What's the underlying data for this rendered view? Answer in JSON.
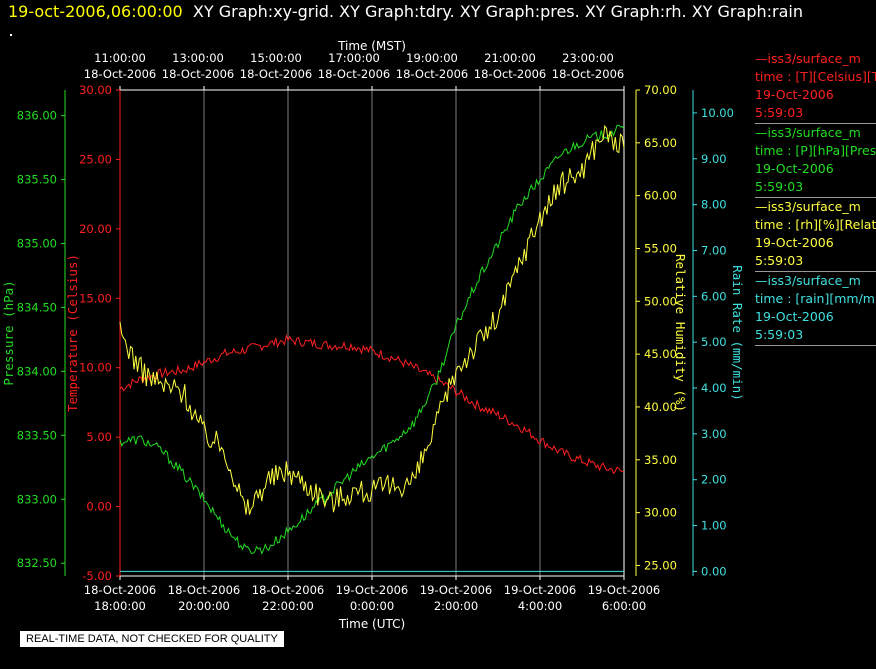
{
  "header": {
    "date": "19-oct-2006,06:00:00",
    "titles": "XY Graph:xy-grid.  XY Graph:tdry.  XY Graph:pres.  XY Graph:rh.  XY Graph:rain"
  },
  "quality_note": "REAL-TIME DATA, NOT CHECKED FOR QUALITY",
  "legend": [
    {
      "line1": "—iss3/surface_m",
      "line2": "time : [T][Celsius][T",
      "line3": "19-Oct-2006",
      "line4": "5:59:03",
      "color": "#ff2020"
    },
    {
      "line1": "—iss3/surface_m",
      "line2": "time : [P][hPa][Pres",
      "line3": "19-Oct-2006",
      "line4": "5:59:03",
      "color": "#22dd22"
    },
    {
      "line1": "—iss3/surface_m",
      "line2": "time : [rh][%][Relativ",
      "line3": "19-Oct-2006",
      "line4": "5:59:03",
      "color": "#ffff40"
    },
    {
      "line1": "—iss3/surface_m",
      "line2": "time : [rain][mm/min",
      "line3": "19-Oct-2006",
      "line4": "5:59:03",
      "color": "#40e0e0"
    }
  ],
  "chart_data": {
    "type": "line",
    "top_axis_label": "Time (MST)",
    "bottom_axis_label": "Time (UTC)",
    "x_range_utc": [
      "18-Oct-2006 18:00:00",
      "19-Oct-2006 06:00:00"
    ],
    "top_ticks": [
      {
        "time": "11:00:00",
        "date": "18-Oct-2006"
      },
      {
        "time": "13:00:00",
        "date": "18-Oct-2006"
      },
      {
        "time": "15:00:00",
        "date": "18-Oct-2006"
      },
      {
        "time": "17:00:00",
        "date": "18-Oct-2006"
      },
      {
        "time": "19:00:00",
        "date": "18-Oct-2006"
      },
      {
        "time": "21:00:00",
        "date": "18-Oct-2006"
      },
      {
        "time": "23:00:00",
        "date": "18-Oct-2006"
      }
    ],
    "bottom_ticks": [
      {
        "date": "18-Oct-2006",
        "time": "18:00:00"
      },
      {
        "date": "18-Oct-2006",
        "time": "20:00:00"
      },
      {
        "date": "18-Oct-2006",
        "time": "22:00:00"
      },
      {
        "date": "19-Oct-2006",
        "time": "0:00:00"
      },
      {
        "date": "19-Oct-2006",
        "time": "2:00:00"
      },
      {
        "date": "19-Oct-2006",
        "time": "4:00:00"
      },
      {
        "date": "19-Oct-2006",
        "time": "6:00:00"
      }
    ],
    "axes": {
      "pressure": {
        "label": "Pressure (hPa)",
        "color": "#22dd22",
        "range": [
          832.4,
          836.2
        ],
        "ticks": [
          "832.50",
          "833.00",
          "833.50",
          "834.00",
          "834.50",
          "835.00",
          "835.50",
          "836.00"
        ]
      },
      "temperature": {
        "label": "Temperature (Celsius)",
        "color": "#ff2020",
        "range": [
          -5,
          30
        ],
        "ticks": [
          "-5.00",
          "0.00",
          "5.00",
          "10.00",
          "15.00",
          "20.00",
          "25.00",
          "30.00"
        ]
      },
      "rh": {
        "label": "Relative Humidity (%)",
        "color": "#ffff40",
        "range": [
          24,
          70
        ],
        "ticks": [
          "25.00",
          "30.00",
          "35.00",
          "40.00",
          "45.00",
          "50.00",
          "55.00",
          "60.00",
          "65.00",
          "70.00"
        ]
      },
      "rain": {
        "label": "Rain Rate (mm/min)",
        "color": "#40e0e0",
        "range": [
          -0.1,
          10.5
        ],
        "ticks": [
          "0.00",
          "1.00",
          "2.00",
          "3.00",
          "4.00",
          "5.00",
          "6.00",
          "7.00",
          "8.00",
          "9.00",
          "10.00"
        ]
      }
    },
    "x_hours_utc_offset_from_1800": [
      0,
      0.5,
      1,
      1.5,
      2,
      2.5,
      3,
      3.5,
      4,
      4.5,
      5,
      5.5,
      6,
      6.5,
      7,
      7.5,
      8,
      8.5,
      9,
      9.5,
      10,
      10.5,
      11,
      11.5,
      12
    ],
    "series": [
      {
        "name": "Temperature",
        "axis": "temperature",
        "color": "#ff2020",
        "values": [
          8.5,
          9.2,
          9.6,
          9.8,
          10.4,
          11.0,
          11.3,
          11.7,
          12.0,
          11.8,
          11.6,
          11.6,
          11.2,
          10.7,
          10.0,
          9.2,
          8.3,
          7.3,
          6.6,
          5.8,
          4.8,
          3.9,
          3.3,
          2.8,
          2.5
        ]
      },
      {
        "name": "Pressure",
        "axis": "pressure",
        "color": "#22dd22",
        "values": [
          833.45,
          833.47,
          833.38,
          833.2,
          833.0,
          832.78,
          832.6,
          832.62,
          832.75,
          832.9,
          833.05,
          833.2,
          833.33,
          833.45,
          833.6,
          833.9,
          834.35,
          834.7,
          835.0,
          835.3,
          835.5,
          835.7,
          835.8,
          835.85,
          835.9
        ]
      },
      {
        "name": "Relative Humidity",
        "axis": "rh",
        "color": "#ffff40",
        "values": [
          47.0,
          43.5,
          42.0,
          41.5,
          37.5,
          36.0,
          30.0,
          33.0,
          34.0,
          32.5,
          31.0,
          32.0,
          32.0,
          32.5,
          33.0,
          38.0,
          43.5,
          46.0,
          48.5,
          53.5,
          58.0,
          61.0,
          62.5,
          66.0,
          64.5
        ]
      },
      {
        "name": "Rain Rate",
        "axis": "rain",
        "color": "#40e0e0",
        "values": [
          0,
          0,
          0,
          0,
          0,
          0,
          0,
          0,
          0,
          0,
          0,
          0,
          0,
          0,
          0,
          0,
          0,
          0,
          0,
          0,
          0,
          0,
          0,
          0,
          0
        ]
      }
    ]
  }
}
